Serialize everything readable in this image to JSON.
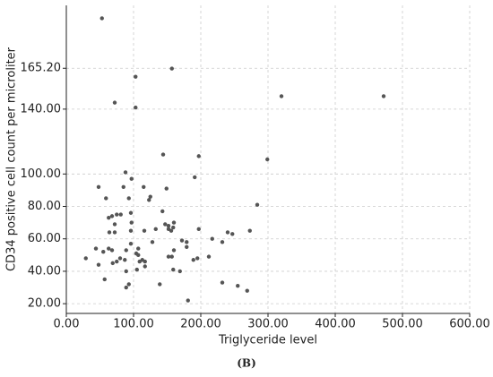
{
  "chart_data": {
    "type": "scatter",
    "x_label": "Triglyceride level",
    "y_label": "CD34 positive cell count per microliter",
    "caption": "(B)",
    "color": "#555555",
    "grid": true,
    "xlim": [
      0,
      600
    ],
    "ylim": [
      14,
      204
    ],
    "xticks": [
      {
        "value": 0,
        "label": "0.00"
      },
      {
        "value": 100,
        "label": "100.00"
      },
      {
        "value": 200,
        "label": "200.00"
      },
      {
        "value": 300,
        "label": "300.00"
      },
      {
        "value": 400,
        "label": "400.00"
      },
      {
        "value": 500,
        "label": "500.00"
      },
      {
        "value": 600,
        "label": "600.00"
      }
    ],
    "yticks": [
      {
        "value": 20,
        "label": "20.00"
      },
      {
        "value": 40,
        "label": "40.00"
      },
      {
        "value": 60,
        "label": "60.00"
      },
      {
        "value": 80,
        "label": "80.00"
      },
      {
        "value": 100,
        "label": "100.00"
      },
      {
        "value": 140,
        "label": "140.00"
      },
      {
        "value": 165.2,
        "label": "165.20"
      }
    ],
    "x": [
      53,
      157,
      103,
      320,
      472,
      72,
      103,
      144,
      197,
      299,
      88,
      97,
      191,
      48,
      85,
      115,
      149,
      59,
      125,
      93,
      123,
      284,
      143,
      96,
      75,
      81,
      68,
      63,
      97,
      160,
      147,
      152,
      72,
      159,
      152,
      133,
      116,
      156,
      96,
      197,
      273,
      240,
      247,
      64,
      72,
      217,
      128,
      172,
      179,
      232,
      96,
      179,
      44,
      63,
      68,
      107,
      160,
      89,
      55,
      104,
      107,
      152,
      157,
      212,
      29,
      80,
      75,
      87,
      113,
      109,
      117,
      189,
      195,
      69,
      48,
      117,
      159,
      169,
      89,
      105,
      57,
      139,
      232,
      93,
      89,
      255,
      269,
      181
    ],
    "values": [
      196,
      165,
      160,
      148,
      148,
      144,
      141,
      112,
      111,
      109,
      101,
      97,
      98,
      92,
      92,
      92,
      91,
      85,
      86,
      85,
      84,
      81,
      77,
      76,
      75,
      75,
      74,
      73,
      70,
      70,
      69,
      68,
      69,
      67,
      66,
      66,
      65,
      65,
      65,
      66,
      65,
      64,
      63,
      64,
      64,
      60,
      58,
      59,
      58,
      58,
      57,
      55,
      54,
      54,
      53,
      54,
      53,
      53,
      52,
      51,
      50,
      49,
      49,
      49,
      48,
      48,
      46,
      47,
      47,
      46,
      46,
      47,
      48,
      45,
      44,
      43,
      41,
      40,
      40,
      41,
      35,
      32,
      33,
      32,
      30,
      31,
      28,
      22
    ]
  }
}
